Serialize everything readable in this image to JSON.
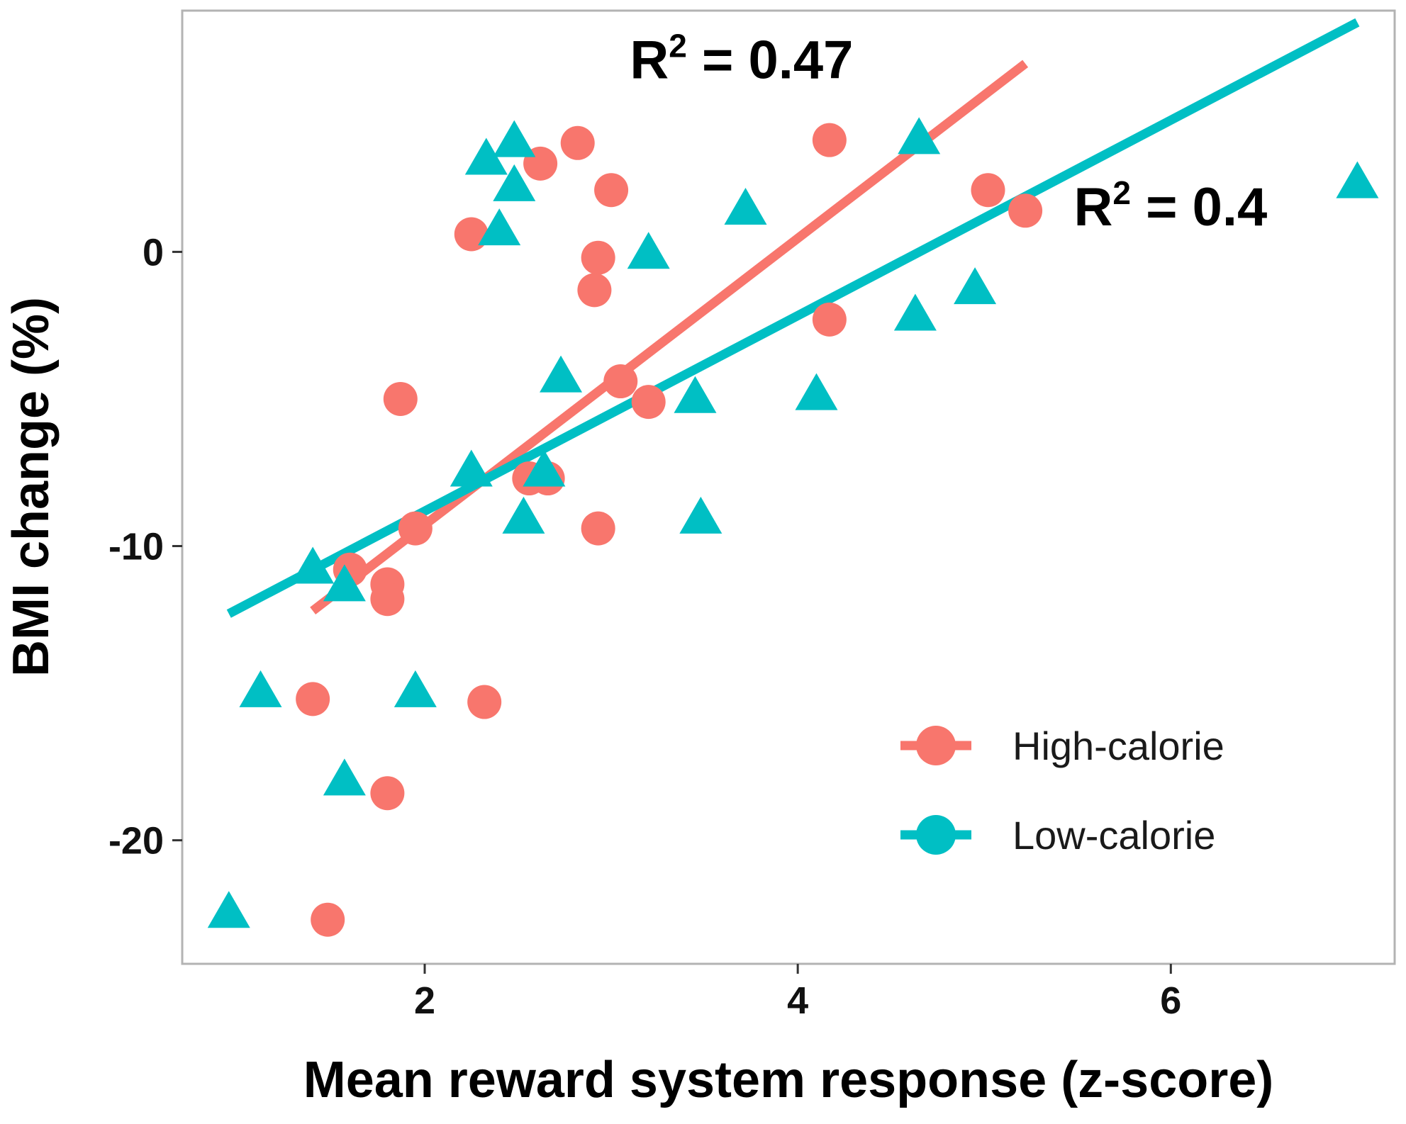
{
  "chart_data": {
    "type": "scatter",
    "title": "",
    "xlabel": "Mean reward system response (z-score)",
    "ylabel": "BMI change (%)",
    "xlim": [
      0.7,
      7.2
    ],
    "ylim": [
      -24.2,
      8.2
    ],
    "xticks": [
      2,
      4,
      6
    ],
    "yticks": [
      0,
      -10,
      -20
    ],
    "grid": false,
    "legend_position": "bottom-right",
    "series": [
      {
        "name": "High-calorie",
        "color": "#F8766D",
        "marker": "circle",
        "points": [
          {
            "x": 2.82,
            "y": 3.7
          },
          {
            "x": 2.62,
            "y": 3.0
          },
          {
            "x": 3.0,
            "y": 2.1
          },
          {
            "x": 2.25,
            "y": 0.6
          },
          {
            "x": 2.93,
            "y": -0.2
          },
          {
            "x": 2.91,
            "y": -1.3
          },
          {
            "x": 4.17,
            "y": 3.8
          },
          {
            "x": 5.02,
            "y": 2.1
          },
          {
            "x": 5.22,
            "y": 1.4
          },
          {
            "x": 4.17,
            "y": -2.3
          },
          {
            "x": 3.05,
            "y": -4.4
          },
          {
            "x": 3.2,
            "y": -5.1
          },
          {
            "x": 1.87,
            "y": -5.0
          },
          {
            "x": 2.56,
            "y": -7.7
          },
          {
            "x": 2.66,
            "y": -7.7
          },
          {
            "x": 1.95,
            "y": -9.4
          },
          {
            "x": 2.93,
            "y": -9.4
          },
          {
            "x": 1.6,
            "y": -10.8
          },
          {
            "x": 1.8,
            "y": -11.3
          },
          {
            "x": 1.8,
            "y": -11.8
          },
          {
            "x": 1.4,
            "y": -15.2
          },
          {
            "x": 2.32,
            "y": -15.3
          },
          {
            "x": 1.8,
            "y": -18.4
          },
          {
            "x": 1.48,
            "y": -22.7
          }
        ],
        "fit": {
          "x": [
            1.4,
            5.22
          ],
          "y": [
            -12.2,
            6.4
          ]
        },
        "r2_label": "R² = 0.47"
      },
      {
        "name": "Low-calorie",
        "color": "#00BFC4",
        "marker": "triangle",
        "points": [
          {
            "x": 2.48,
            "y": 3.7
          },
          {
            "x": 2.33,
            "y": 3.1
          },
          {
            "x": 2.48,
            "y": 2.2
          },
          {
            "x": 2.4,
            "y": 0.7
          },
          {
            "x": 3.2,
            "y": -0.1
          },
          {
            "x": 3.72,
            "y": 1.4
          },
          {
            "x": 4.65,
            "y": 3.8
          },
          {
            "x": 7.0,
            "y": 2.3
          },
          {
            "x": 4.95,
            "y": -1.3
          },
          {
            "x": 4.63,
            "y": -2.2
          },
          {
            "x": 2.73,
            "y": -4.3
          },
          {
            "x": 3.45,
            "y": -5.0
          },
          {
            "x": 4.1,
            "y": -4.9
          },
          {
            "x": 2.25,
            "y": -7.5
          },
          {
            "x": 2.64,
            "y": -7.5
          },
          {
            "x": 2.53,
            "y": -9.1
          },
          {
            "x": 3.48,
            "y": -9.1
          },
          {
            "x": 1.4,
            "y": -10.8
          },
          {
            "x": 1.57,
            "y": -11.4
          },
          {
            "x": 1.12,
            "y": -15.0
          },
          {
            "x": 1.95,
            "y": -15.0
          },
          {
            "x": 1.57,
            "y": -18.0
          },
          {
            "x": 0.95,
            "y": -22.5
          }
        ],
        "fit": {
          "x": [
            0.95,
            7.0
          ],
          "y": [
            -12.3,
            7.8
          ]
        },
        "r2_label": "R² = 0.4"
      }
    ],
    "annotations": [
      {
        "series": "High-calorie",
        "base": "R",
        "sup": "2",
        "rest": " = 0.47",
        "x": 3.1,
        "y": 5.9
      },
      {
        "series": "Low-calorie",
        "base": "R",
        "sup": "2",
        "rest": " = 0.4",
        "x": 5.48,
        "y": 0.9
      }
    ]
  }
}
